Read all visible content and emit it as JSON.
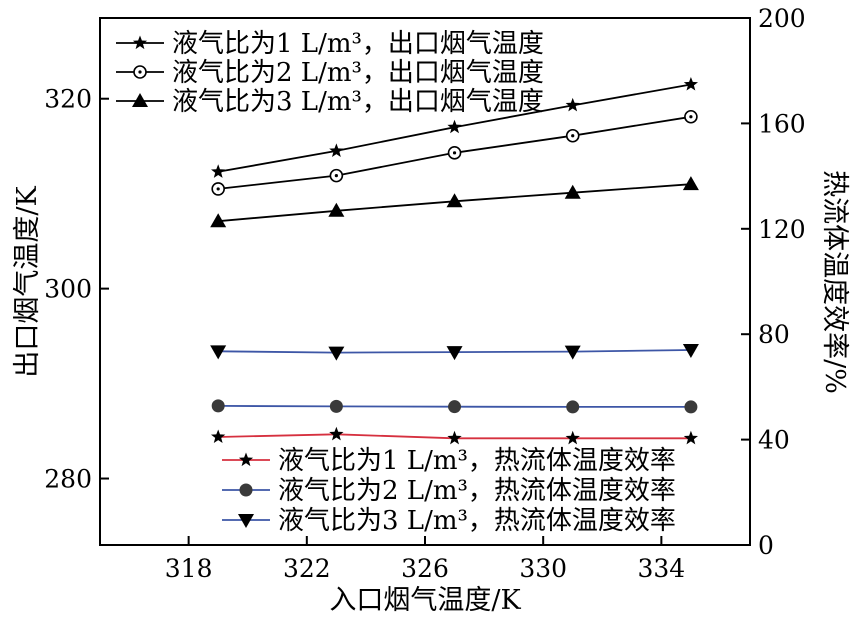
{
  "chart_data": {
    "type": "line",
    "x": [
      319,
      323,
      327,
      331,
      335
    ],
    "xlabel": "入口烟气温度/K",
    "ylabel": "出口烟气温度/K",
    "y2label": "热流体温度效率/%",
    "xlim": [
      315,
      337
    ],
    "ylim": [
      273,
      328.5
    ],
    "y2lim": [
      0,
      200
    ],
    "xticks": [
      "318",
      "322",
      "326",
      "330",
      "334"
    ],
    "yticks": [
      "280",
      "300",
      "320"
    ],
    "y2ticks": [
      "0",
      "40",
      "80",
      "120",
      "160",
      "200"
    ],
    "grid": false,
    "legend_outlet_placement": "top-left",
    "legend_efficiency_placement": "bottom-right",
    "series": [
      {
        "name": "液气比为1 L/m³，出口烟气温度",
        "axis": "left",
        "marker": "star",
        "color": "#000000",
        "values": [
          312.3,
          314.5,
          317.0,
          319.3,
          321.5
        ]
      },
      {
        "name": "液气比为2 L/m³，出口烟气温度",
        "axis": "left",
        "marker": "circle-open",
        "color": "#000000",
        "values": [
          310.5,
          311.9,
          314.3,
          316.1,
          318.1
        ]
      },
      {
        "name": "液气比为3 L/m³，出口烟气温度",
        "axis": "left",
        "marker": "triangle-up",
        "color": "#000000",
        "values": [
          307.1,
          308.2,
          309.2,
          310.1,
          311.0
        ]
      },
      {
        "name": "液气比为1 L/m³，热流体温度效率",
        "axis": "right",
        "marker": "star",
        "color": "#d6303f",
        "values": [
          41.0,
          42.0,
          40.5,
          40.5,
          40.5
        ]
      },
      {
        "name": "液气比为2 L/m³，热流体温度效率",
        "axis": "right",
        "marker": "circle-filled",
        "color": "#3d56a6",
        "values": [
          52.8,
          52.6,
          52.5,
          52.4,
          52.4
        ]
      },
      {
        "name": "液气比为3 L/m³，热流体温度效率",
        "axis": "right",
        "marker": "triangle-down",
        "color": "#3d56a6",
        "values": [
          73.5,
          73.0,
          73.2,
          73.4,
          74.0
        ]
      }
    ]
  }
}
